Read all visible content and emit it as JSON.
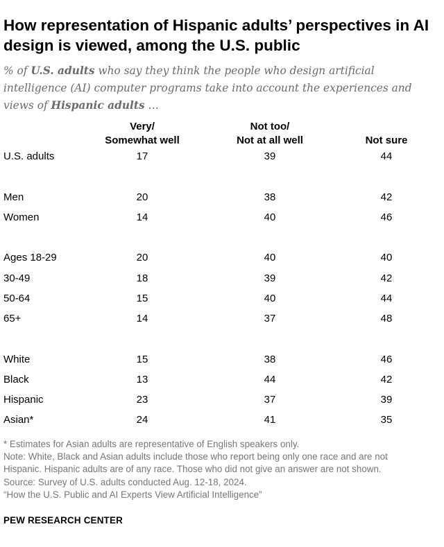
{
  "title": "How representation of Hispanic adults’ perspectives in AI design is viewed, among the U.S. public",
  "subtitle": {
    "pre": "% of ",
    "bold1": "U.S. adults",
    "mid": " who say they think the people who design artificial intelligence (AI) computer programs take into account the experiences and views of ",
    "bold2": "Hispanic adults",
    "post": " …"
  },
  "chart_data": {
    "type": "table",
    "columns": [
      {
        "line1": "Very/",
        "line2": "Somewhat well"
      },
      {
        "line1": "Not too/",
        "line2": "Not at all well"
      },
      {
        "line1": "",
        "line2": "Not sure"
      }
    ],
    "groups": [
      [
        {
          "label": "U.S. adults",
          "values": [
            17,
            39,
            44
          ]
        }
      ],
      [
        {
          "label": "Men",
          "values": [
            20,
            38,
            42
          ]
        },
        {
          "label": "Women",
          "values": [
            14,
            40,
            46
          ]
        }
      ],
      [
        {
          "label": "Ages 18-29",
          "values": [
            20,
            40,
            40
          ]
        },
        {
          "label": "30-49",
          "values": [
            18,
            39,
            42
          ]
        },
        {
          "label": "50-64",
          "values": [
            15,
            40,
            44
          ]
        },
        {
          "label": "65+",
          "values": [
            14,
            37,
            48
          ]
        }
      ],
      [
        {
          "label": "White",
          "values": [
            15,
            38,
            46
          ]
        },
        {
          "label": "Black",
          "values": [
            13,
            44,
            42
          ]
        },
        {
          "label": "Hispanic",
          "values": [
            23,
            37,
            39
          ]
        },
        {
          "label": "Asian*",
          "values": [
            24,
            41,
            35
          ]
        }
      ]
    ]
  },
  "notes": [
    "* Estimates for Asian adults are representative of English speakers only.",
    "Note: White, Black and Asian adults include those who report being only one race and are not",
    "Hispanic. Hispanic adults are of any race. Those who did not give an answer are not shown.",
    "Source: Survey of U.S. adults conducted Aug. 12-18, 2024.",
    "“How the U.S. Public and AI Experts View Artificial Intelligence”"
  ],
  "brand": "PEW RESEARCH CENTER"
}
